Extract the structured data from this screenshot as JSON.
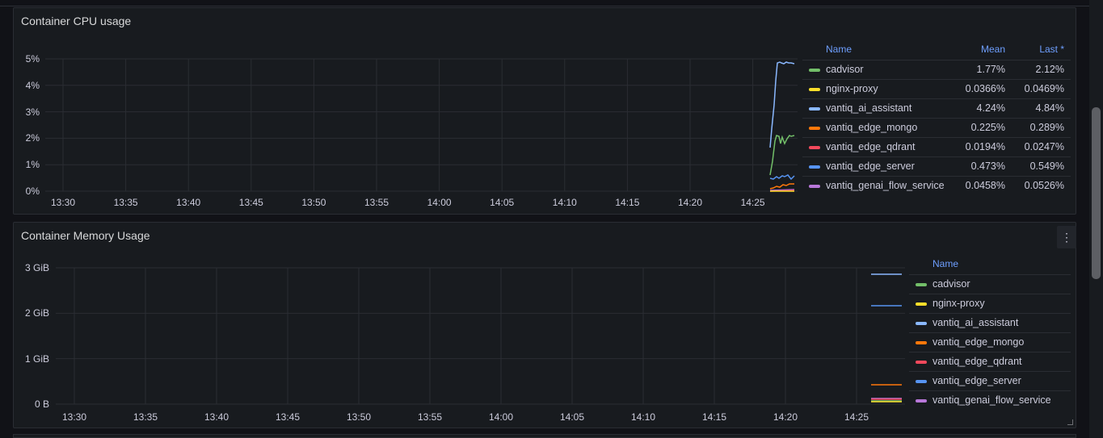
{
  "panels": [
    {
      "title": "Container CPU usage",
      "legend_headers": {
        "name": "Name",
        "mean": "Mean",
        "last": "Last *"
      },
      "legend": [
        {
          "name": "cadvisor",
          "color": "#73bf69",
          "mean": "1.77%",
          "last": "2.12%"
        },
        {
          "name": "nginx-proxy",
          "color": "#fade2a",
          "mean": "0.0366%",
          "last": "0.0469%"
        },
        {
          "name": "vantiq_ai_assistant",
          "color": "#8ab8ff",
          "mean": "4.24%",
          "last": "4.84%"
        },
        {
          "name": "vantiq_edge_mongo",
          "color": "#ff780a",
          "mean": "0.225%",
          "last": "0.289%"
        },
        {
          "name": "vantiq_edge_qdrant",
          "color": "#f2495c",
          "mean": "0.0194%",
          "last": "0.0247%"
        },
        {
          "name": "vantiq_edge_server",
          "color": "#5794f2",
          "mean": "0.473%",
          "last": "0.549%"
        },
        {
          "name": "vantiq_genai_flow_service",
          "color": "#b877d9",
          "mean": "0.0458%",
          "last": "0.0526%"
        }
      ],
      "y_ticks": [
        "5%",
        "4%",
        "3%",
        "2%",
        "1%",
        "0%"
      ],
      "x_ticks": [
        "13:30",
        "13:35",
        "13:40",
        "13:45",
        "13:50",
        "13:55",
        "14:00",
        "14:05",
        "14:10",
        "14:15",
        "14:20",
        "14:25"
      ]
    },
    {
      "title": "Container Memory Usage",
      "legend_headers": {
        "name": "Name"
      },
      "legend": [
        {
          "name": "cadvisor",
          "color": "#73bf69"
        },
        {
          "name": "nginx-proxy",
          "color": "#fade2a"
        },
        {
          "name": "vantiq_ai_assistant",
          "color": "#8ab8ff"
        },
        {
          "name": "vantiq_edge_mongo",
          "color": "#ff780a"
        },
        {
          "name": "vantiq_edge_qdrant",
          "color": "#f2495c"
        },
        {
          "name": "vantiq_edge_server",
          "color": "#5794f2"
        },
        {
          "name": "vantiq_genai_flow_service",
          "color": "#b877d9"
        }
      ],
      "y_ticks": [
        "3 GiB",
        "2 GiB",
        "1 GiB",
        "0 B"
      ],
      "x_ticks": [
        "13:30",
        "13:35",
        "13:40",
        "13:45",
        "13:50",
        "13:55",
        "14:00",
        "14:05",
        "14:10",
        "14:15",
        "14:20",
        "14:25"
      ],
      "menu_icon": "vertical-ellipsis-icon"
    }
  ]
}
